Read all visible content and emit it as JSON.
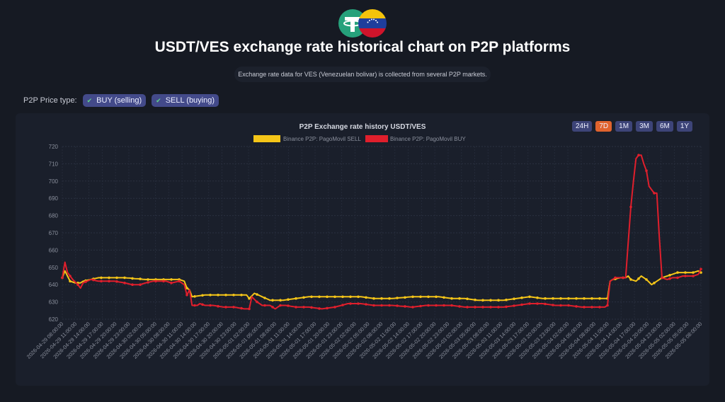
{
  "header": {
    "logo_icons": [
      "tether-icon",
      "venezuela-flag-icon"
    ],
    "title": "USDT/VES exchange rate historical chart on P2P platforms",
    "subtitle": "Exchange rate data for VES (Venezuelan bolivar) is collected from several P2P markets."
  },
  "controls": {
    "price_type_label": "P2P Price type:",
    "buy_label": "BUY (selling)",
    "sell_label": "SELL (buying)",
    "check_icon": "check-icon",
    "ranges": [
      "24H",
      "7D",
      "1M",
      "3M",
      "6M",
      "1Y"
    ],
    "active_range": "7D"
  },
  "colors": {
    "sell": "#f5c518",
    "buy": "#e01f2c",
    "accent": "#e0632e",
    "pill": "#434a8a"
  },
  "chart_data": {
    "type": "line",
    "title": "P2P Exchange rate history USDT/VES",
    "ylim": [
      620,
      720
    ],
    "yticks": [
      620,
      630,
      640,
      650,
      660,
      670,
      680,
      690,
      700,
      710,
      720
    ],
    "grid": true,
    "legend_position": "top-center",
    "x_tick_labels": [
      "2026-04-29 08:00:00",
      "2026-04-29 11:00:00",
      "2026-04-29 14:00:00",
      "2026-04-29 17:00:00",
      "2026-04-29 20:00:00",
      "2026-04-29 23:00:00",
      "2026-04-30 02:00:00",
      "2026-04-30 05:00:00",
      "2026-04-30 08:00:00",
      "2026-04-30 11:00:00",
      "2026-04-30 14:00:00",
      "2026-04-30 17:00:00",
      "2026-04-30 20:00:00",
      "2026-04-30 23:00:00",
      "2026-05-01 02:00:00",
      "2026-05-01 05:00:00",
      "2026-05-01 08:00:00",
      "2026-05-01 11:00:00",
      "2026-05-01 14:00:00",
      "2026-05-01 17:00:00",
      "2026-05-01 20:00:00",
      "2026-05-01 23:00:00",
      "2026-05-02 02:00:00",
      "2026-05-02 05:00:00",
      "2026-05-02 08:00:00",
      "2026-05-02 11:00:00",
      "2026-05-02 14:00:00",
      "2026-05-02 17:00:00",
      "2026-05-02 20:00:00",
      "2026-05-02 23:00:00",
      "2026-05-03 02:00:00",
      "2026-05-03 05:00:00",
      "2026-05-03 08:00:00",
      "2026-05-03 11:00:00",
      "2026-05-03 14:00:00",
      "2026-05-03 17:00:00",
      "2026-05-03 20:00:00",
      "2026-05-03 23:00:00",
      "2026-05-04 02:00:00",
      "2026-05-04 05:00:00",
      "2026-05-04 08:00:00",
      "2026-05-04 11:00:00",
      "2026-05-04 14:00:00",
      "2026-05-04 17:00:00",
      "2026-05-04 20:00:00",
      "2026-05-04 23:00:00",
      "2026-05-05 02:00:00",
      "2026-05-05 05:00:00",
      "2026-05-05 08:00:00"
    ],
    "series": [
      {
        "name": "Binance P2P: PagoMovil SELL",
        "color": "#f5c518",
        "keyframes": [
          [
            0,
            644
          ],
          [
            1,
            648
          ],
          [
            2,
            645
          ],
          [
            3,
            642
          ],
          [
            5,
            641
          ],
          [
            7,
            641
          ],
          [
            8,
            642
          ],
          [
            11,
            643
          ],
          [
            14,
            644
          ],
          [
            20,
            644
          ],
          [
            24,
            644
          ],
          [
            32,
            643
          ],
          [
            38,
            643
          ],
          [
            40,
            643
          ],
          [
            42,
            643
          ],
          [
            45,
            643
          ],
          [
            47,
            642
          ],
          [
            48,
            638
          ],
          [
            49,
            637
          ],
          [
            50,
            633
          ],
          [
            55,
            634
          ],
          [
            63,
            634
          ],
          [
            67,
            634
          ],
          [
            71,
            634
          ],
          [
            72,
            632
          ],
          [
            74,
            635
          ],
          [
            77,
            633
          ],
          [
            80,
            631
          ],
          [
            85,
            631
          ],
          [
            90,
            632
          ],
          [
            95,
            633
          ],
          [
            100,
            633
          ],
          [
            105,
            633
          ],
          [
            110,
            633
          ],
          [
            115,
            633
          ],
          [
            120,
            632
          ],
          [
            127,
            632
          ],
          [
            135,
            633
          ],
          [
            140,
            633
          ],
          [
            145,
            633
          ],
          [
            150,
            632
          ],
          [
            155,
            632
          ],
          [
            160,
            631
          ],
          [
            165,
            631
          ],
          [
            170,
            631
          ],
          [
            175,
            632
          ],
          [
            180,
            633
          ],
          [
            185,
            632
          ],
          [
            190,
            632
          ],
          [
            195,
            632
          ],
          [
            203,
            632
          ],
          [
            210,
            632
          ],
          [
            211,
            642
          ],
          [
            212,
            643
          ],
          [
            215,
            644
          ],
          [
            217,
            644
          ],
          [
            218,
            645
          ],
          [
            219,
            643
          ],
          [
            221,
            642
          ],
          [
            223,
            645
          ],
          [
            225,
            643
          ],
          [
            227,
            640
          ],
          [
            229,
            642
          ],
          [
            231,
            644
          ],
          [
            233,
            645
          ],
          [
            235,
            646
          ],
          [
            237,
            647
          ],
          [
            239,
            647
          ],
          [
            243,
            647
          ],
          [
            245,
            648
          ],
          [
            246,
            647
          ]
        ],
        "values": []
      },
      {
        "name": "Binance P2P: PagoMovil BUY",
        "color": "#e01f2c",
        "keyframes": [
          [
            0,
            644
          ],
          [
            1,
            653
          ],
          [
            2,
            647
          ],
          [
            4,
            643
          ],
          [
            6,
            640
          ],
          [
            7,
            638
          ],
          [
            8,
            641
          ],
          [
            11,
            643
          ],
          [
            14,
            642
          ],
          [
            17,
            642
          ],
          [
            20,
            642
          ],
          [
            24,
            641
          ],
          [
            27,
            640
          ],
          [
            30,
            640
          ],
          [
            32,
            641
          ],
          [
            35,
            642
          ],
          [
            38,
            642
          ],
          [
            40,
            642
          ],
          [
            42,
            641
          ],
          [
            45,
            642
          ],
          [
            47,
            640
          ],
          [
            48,
            634
          ],
          [
            49,
            637
          ],
          [
            50,
            628
          ],
          [
            52,
            628
          ],
          [
            53,
            629
          ],
          [
            55,
            628
          ],
          [
            58,
            628
          ],
          [
            62,
            627
          ],
          [
            66,
            627
          ],
          [
            70,
            626
          ],
          [
            72,
            626
          ],
          [
            73,
            633
          ],
          [
            75,
            630
          ],
          [
            77,
            628
          ],
          [
            79,
            628
          ],
          [
            80,
            628
          ],
          [
            82,
            626
          ],
          [
            84,
            628
          ],
          [
            86,
            628
          ],
          [
            90,
            627
          ],
          [
            95,
            627
          ],
          [
            100,
            626
          ],
          [
            105,
            627
          ],
          [
            110,
            629
          ],
          [
            115,
            629
          ],
          [
            120,
            628
          ],
          [
            127,
            628
          ],
          [
            135,
            627
          ],
          [
            140,
            628
          ],
          [
            145,
            628
          ],
          [
            150,
            628
          ],
          [
            155,
            627
          ],
          [
            160,
            627
          ],
          [
            165,
            627
          ],
          [
            170,
            627
          ],
          [
            175,
            628
          ],
          [
            180,
            629
          ],
          [
            185,
            629
          ],
          [
            190,
            628
          ],
          [
            195,
            628
          ],
          [
            200,
            627
          ],
          [
            203,
            627
          ],
          [
            209,
            627
          ],
          [
            210,
            628
          ],
          [
            211,
            642
          ],
          [
            213,
            644
          ],
          [
            215,
            644
          ],
          [
            217,
            644
          ],
          [
            219,
            685
          ],
          [
            220,
            700
          ],
          [
            221,
            713
          ],
          [
            222,
            715
          ],
          [
            223,
            715
          ],
          [
            224,
            710
          ],
          [
            225,
            706
          ],
          [
            226,
            697
          ],
          [
            227,
            695
          ],
          [
            228,
            693
          ],
          [
            229,
            693
          ],
          [
            230,
            667
          ],
          [
            231,
            644
          ],
          [
            233,
            643
          ],
          [
            235,
            644
          ],
          [
            237,
            644
          ],
          [
            239,
            645
          ],
          [
            241,
            645
          ],
          [
            243,
            645
          ],
          [
            245,
            646
          ],
          [
            246,
            649
          ]
        ],
        "values": []
      }
    ]
  }
}
